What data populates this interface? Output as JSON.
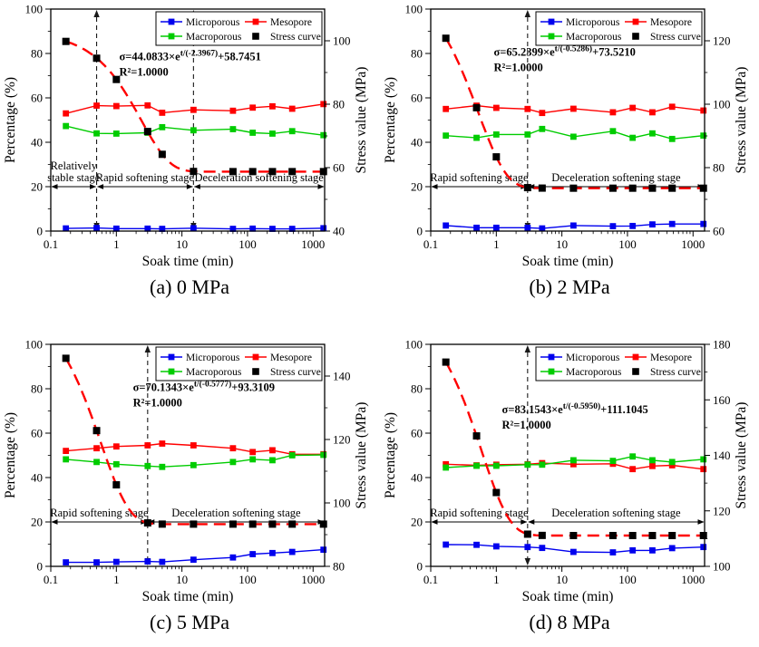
{
  "figure": {
    "background": "#ffffff"
  },
  "legend": {
    "items": [
      {
        "label": "Microporous",
        "color": "#0000ee",
        "marker": "line-square"
      },
      {
        "label": "Mesopore",
        "color": "#ff0000",
        "marker": "line-square"
      },
      {
        "label": "Macroporous",
        "color": "#00cc00",
        "marker": "line-square"
      },
      {
        "label": "Stress curve",
        "color": "#000000",
        "marker": "square"
      }
    ]
  },
  "chart_data": [
    {
      "type": "line",
      "caption": "(a) 0 MPa",
      "xlabel": "Soak time (min)",
      "ylabel_left": "Percentage (%)",
      "ylabel_right": "Stress value (MPa)",
      "x_range": [
        0.1,
        1500
      ],
      "x_ticks": [
        0.1,
        1,
        10,
        100,
        1000
      ],
      "y_left": {
        "min": 0,
        "max": 100,
        "ticks": [
          0,
          20,
          40,
          60,
          80,
          100
        ]
      },
      "y_right": {
        "min": 40,
        "max": 110,
        "ticks": [
          40,
          60,
          80,
          100
        ]
      },
      "x": [
        0.17,
        0.5,
        1,
        3,
        5,
        15,
        60,
        120,
        240,
        480,
        1440
      ],
      "series": [
        {
          "name": "Microporous",
          "color": "#0000ee",
          "values": [
            1.2,
            1.4,
            1.1,
            1.1,
            1.0,
            1.3,
            1.0,
            1.1,
            1.0,
            1.0,
            1.3
          ]
        },
        {
          "name": "Mesopore",
          "color": "#ff0000",
          "values": [
            53.0,
            56.5,
            56.3,
            56.6,
            53.3,
            54.6,
            54.2,
            55.6,
            56.2,
            55.1,
            57.2
          ]
        },
        {
          "name": "Macroporous",
          "color": "#00cc00",
          "values": [
            47.3,
            44.0,
            43.9,
            44.3,
            46.8,
            45.4,
            45.9,
            44.3,
            43.9,
            45.0,
            43.2
          ]
        }
      ],
      "stress": {
        "name": "Stress curve",
        "marker_color": "#000000",
        "line_color": "#ff0000",
        "values_mpa": [
          99.8,
          94.5,
          87.8,
          71.4,
          64.2,
          58.8,
          58.75,
          58.75,
          58.75,
          58.75,
          58.75
        ],
        "fit": {
          "A": 44.0833,
          "tau": 2.3967,
          "C": 58.7451
        }
      },
      "equation": {
        "base": "σ=44.0833×e",
        "exp": "t/(-2.3967)",
        "tail": "+58.7451",
        "r2": "R²=1.0000",
        "fx": 0.25,
        "y": 77
      },
      "dividers": [
        0.5,
        15
      ],
      "stage_line_y": 20,
      "stages": [
        {
          "lines": [
            "Relatively",
            "stable stage"
          ],
          "from": 0.1,
          "to": 0.5
        },
        {
          "lines": [
            "Rapid softening stage"
          ],
          "from": 0.5,
          "to": 15
        },
        {
          "lines": [
            "Deceleration softening stage"
          ],
          "from": 15,
          "to": 1500
        }
      ]
    },
    {
      "type": "line",
      "caption": "(b) 2 MPa",
      "xlabel": "Soak time (min)",
      "ylabel_left": "Percentage (%)",
      "ylabel_right": "Stress value (MPa)",
      "x_range": [
        0.1,
        1500
      ],
      "x_ticks": [
        0.1,
        1,
        10,
        100,
        1000
      ],
      "y_left": {
        "min": 0,
        "max": 100,
        "ticks": [
          0,
          20,
          40,
          60,
          80,
          100
        ]
      },
      "y_right": {
        "min": 60,
        "max": 130,
        "ticks": [
          60,
          80,
          100,
          120
        ]
      },
      "x": [
        0.17,
        0.5,
        1,
        3,
        5,
        15,
        60,
        120,
        240,
        480,
        1440
      ],
      "series": [
        {
          "name": "Microporous",
          "color": "#0000ee",
          "values": [
            2.5,
            1.5,
            1.5,
            1.5,
            1.2,
            2.5,
            2.2,
            2.3,
            3.0,
            3.2,
            3.2
          ]
        },
        {
          "name": "Mesopore",
          "color": "#ff0000",
          "values": [
            55.0,
            56.5,
            55.5,
            55.0,
            53.2,
            55.1,
            53.5,
            55.5,
            53.5,
            56.0,
            54.3
          ]
        },
        {
          "name": "Macroporous",
          "color": "#00cc00",
          "values": [
            43.0,
            42.0,
            43.5,
            43.5,
            46.0,
            42.5,
            45.0,
            42.0,
            44.0,
            41.5,
            43.0
          ]
        }
      ],
      "stress": {
        "name": "Stress curve",
        "marker_color": "#000000",
        "line_color": "#ff0000",
        "values_mpa": [
          120.8,
          98.9,
          83.4,
          73.7,
          73.55,
          73.52,
          73.52,
          73.52,
          73.52,
          73.52,
          73.52
        ],
        "fit": {
          "A": 65.2399,
          "tau": 0.5286,
          "C": 73.521
        }
      },
      "equation": {
        "base": "σ=65.2399×e",
        "exp": "t/(-0.5286)",
        "tail": "+73.5210",
        "r2": "R²=1.0000",
        "fx": 0.23,
        "y": 79
      },
      "dividers": [
        3
      ],
      "stage_line_y": 20,
      "stages": [
        {
          "lines": [
            "Rapid softening stage"
          ],
          "from": 0.1,
          "to": 3
        },
        {
          "lines": [
            "Deceleration softening stage"
          ],
          "from": 3,
          "to": 1500
        }
      ]
    },
    {
      "type": "line",
      "caption": "(c) 5 MPa",
      "xlabel": "Soak time (min)",
      "ylabel_left": "Percentage (%)",
      "ylabel_right": "Stress value (MPa)",
      "x_range": [
        0.1,
        1500
      ],
      "x_ticks": [
        0.1,
        1,
        10,
        100,
        1000
      ],
      "y_left": {
        "min": 0,
        "max": 100,
        "ticks": [
          0,
          20,
          40,
          60,
          80,
          100
        ]
      },
      "y_right": {
        "min": 80,
        "max": 150,
        "ticks": [
          80,
          100,
          120,
          140
        ]
      },
      "x": [
        0.17,
        0.5,
        1,
        3,
        5,
        15,
        60,
        120,
        240,
        480,
        1440
      ],
      "series": [
        {
          "name": "Microporous",
          "color": "#0000ee",
          "values": [
            1.8,
            1.8,
            2.0,
            2.2,
            2.0,
            3.0,
            4.0,
            5.5,
            6.0,
            6.5,
            7.5
          ]
        },
        {
          "name": "Mesopore",
          "color": "#ff0000",
          "values": [
            52.0,
            53.2,
            54.0,
            54.5,
            55.3,
            54.5,
            53.2,
            51.5,
            52.3,
            50.5,
            50.5
          ]
        },
        {
          "name": "Macroporous",
          "color": "#00cc00",
          "values": [
            48.2,
            47.0,
            46.0,
            45.2,
            44.8,
            45.6,
            47.0,
            48.2,
            47.8,
            50.0,
            50.2
          ]
        }
      ],
      "stress": {
        "name": "Stress curve",
        "marker_color": "#000000",
        "line_color": "#ff0000",
        "values_mpa": [
          145.6,
          122.8,
          105.7,
          93.7,
          93.32,
          93.31,
          93.31,
          93.31,
          93.31,
          93.31,
          93.31
        ],
        "fit": {
          "A": 70.1343,
          "tau": 0.5777,
          "C": 93.3109
        }
      },
      "equation": {
        "base": "σ=70.1343×e",
        "exp": "t/(-0.5777)",
        "tail": "+93.3109",
        "r2": "R²=1.0000",
        "fx": 0.3,
        "y": 79
      },
      "dividers": [
        3
      ],
      "stage_line_y": 20,
      "stages": [
        {
          "lines": [
            "Rapid softening stage"
          ],
          "from": 0.1,
          "to": 3
        },
        {
          "lines": [
            "Deceleration softening stage"
          ],
          "from": 3,
          "to": 1500
        }
      ]
    },
    {
      "type": "line",
      "caption": "(d) 8 MPa",
      "xlabel": "Soak time (min)",
      "ylabel_left": "Percentage (%)",
      "ylabel_right": "Stress value (MPa)",
      "x_range": [
        0.1,
        1500
      ],
      "x_ticks": [
        0.1,
        1,
        10,
        100,
        1000
      ],
      "y_left": {
        "min": 0,
        "max": 100,
        "ticks": [
          0,
          20,
          40,
          60,
          80,
          100
        ]
      },
      "y_right": {
        "min": 100,
        "max": 180,
        "ticks": [
          100,
          120,
          140,
          160,
          180
        ]
      },
      "x": [
        0.17,
        0.5,
        1,
        3,
        5,
        15,
        60,
        120,
        240,
        480,
        1440
      ],
      "series": [
        {
          "name": "Microporous",
          "color": "#0000ee",
          "values": [
            9.8,
            9.7,
            9.0,
            8.7,
            8.3,
            6.5,
            6.3,
            7.2,
            7.2,
            8.2,
            8.7
          ]
        },
        {
          "name": "Mesopore",
          "color": "#ff0000",
          "values": [
            46.0,
            45.5,
            45.8,
            46.0,
            46.5,
            46.0,
            46.2,
            43.8,
            45.2,
            45.5,
            43.8
          ]
        },
        {
          "name": "Macroporous",
          "color": "#00cc00",
          "values": [
            44.5,
            45.3,
            45.3,
            45.8,
            45.8,
            47.8,
            47.5,
            49.5,
            47.8,
            47.0,
            48.2
          ]
        }
      ],
      "stress": {
        "name": "Stress curve",
        "marker_color": "#000000",
        "line_color": "#ff0000",
        "values_mpa": [
          173.6,
          147.0,
          126.6,
          111.6,
          111.15,
          111.1,
          111.1,
          111.1,
          111.1,
          111.1,
          111.1
        ],
        "fit": {
          "A": 83.1543,
          "tau": 0.595,
          "C": 111.1045
        }
      },
      "equation": {
        "base": "σ=83.1543×e",
        "exp": "t/(-0.5950)",
        "tail": "+111.1045",
        "r2": "R²=1.0000",
        "fx": 0.26,
        "y": 69
      },
      "dividers": [
        3
      ],
      "stage_line_y": 20,
      "stages": [
        {
          "lines": [
            "Rapid softening stage"
          ],
          "from": 0.1,
          "to": 3
        },
        {
          "lines": [
            "Deceleration softening stage"
          ],
          "from": 3,
          "to": 1500
        }
      ]
    }
  ]
}
